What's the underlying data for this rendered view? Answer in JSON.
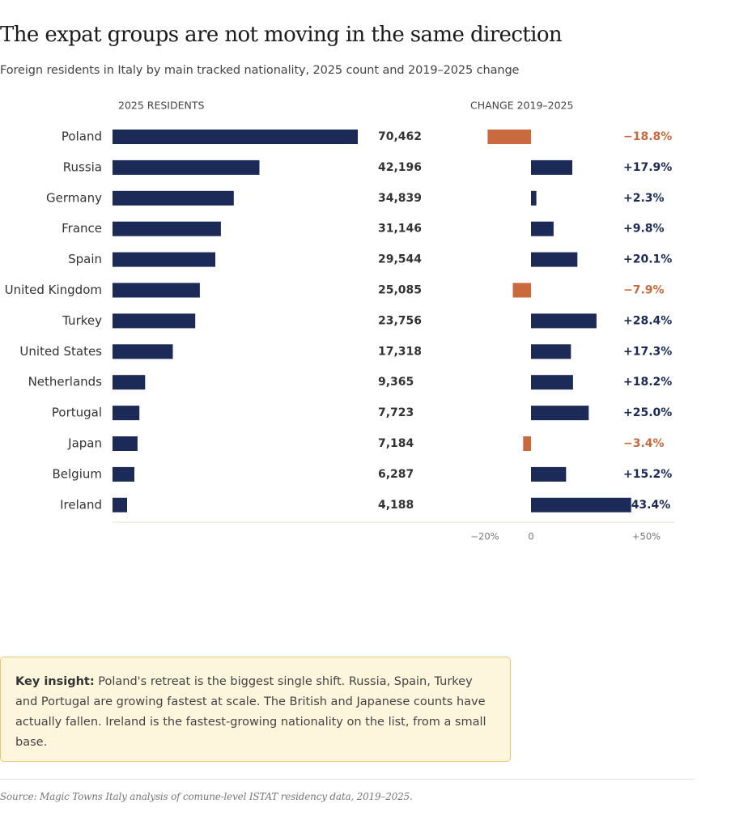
{
  "header": {
    "title": "The expat groups are not moving in the same direction",
    "subtitle": "Foreign residents in Italy by main tracked nationality, 2025 count and 2019–2025 change"
  },
  "colors": {
    "navy": "#1b2a57",
    "orange": "#c86a3e",
    "axis": "#e3dccd",
    "tick_text": "#777777"
  },
  "chart_data": [
    {
      "type": "bar",
      "orientation": "horizontal",
      "title": "2025 RESIDENTS",
      "categories": [
        "Poland",
        "Russia",
        "Germany",
        "France",
        "Spain",
        "United Kingdom",
        "Turkey",
        "United States",
        "Netherlands",
        "Portugal",
        "Japan",
        "Belgium",
        "Ireland"
      ],
      "values": [
        70462,
        42196,
        34839,
        31146,
        29544,
        25085,
        23756,
        17318,
        9365,
        7723,
        7184,
        6287,
        4188
      ],
      "value_labels": [
        "70,462",
        "42,196",
        "34,839",
        "31,146",
        "29,544",
        "25,085",
        "23,756",
        "17,318",
        "9,365",
        "7,723",
        "7,184",
        "6,287",
        "4,188"
      ],
      "xlim": [
        0,
        70462
      ]
    },
    {
      "type": "bar",
      "orientation": "horizontal",
      "title": "CHANGE 2019–2025",
      "categories": [
        "Poland",
        "Russia",
        "Germany",
        "France",
        "Spain",
        "United Kingdom",
        "Turkey",
        "United States",
        "Netherlands",
        "Portugal",
        "Japan",
        "Belgium",
        "Ireland"
      ],
      "values": [
        -18.8,
        17.9,
        2.3,
        9.8,
        20.1,
        -7.9,
        28.4,
        17.3,
        18.2,
        25.0,
        -3.4,
        15.2,
        43.4
      ],
      "value_labels": [
        "−18.8%",
        "+17.9%",
        "+2.3%",
        "+9.8%",
        "+20.1%",
        "−7.9%",
        "+28.4%",
        "+17.3%",
        "+18.2%",
        "+25.0%",
        "−3.4%",
        "+15.2%",
        "43.4%"
      ],
      "xticks": [
        -20,
        0,
        50
      ],
      "xtick_labels": [
        "−20%",
        "0",
        "+50%"
      ],
      "xlim": [
        -20,
        50
      ]
    }
  ],
  "insight": {
    "label": "Key insight:",
    "text": " Poland's retreat is the biggest single shift. Russia, Spain, Turkey and Portugal are growing fastest at scale. The British and Japanese counts have actually fallen. Ireland is the fastest-growing nationality on the list, from a small base."
  },
  "source": "Source: Magic Towns Italy analysis of comune-level ISTAT residency data, 2019–2025."
}
